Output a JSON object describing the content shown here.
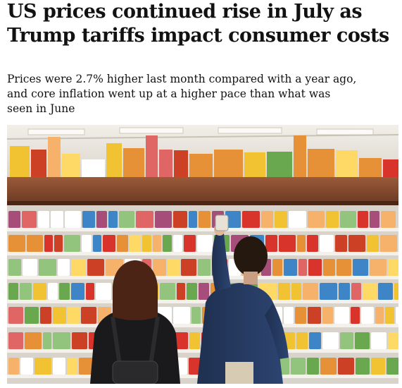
{
  "article": {
    "headline": "US prices continued rise in July as Trump tariffs impact consumer costs",
    "standfirst": "Prices were 2.7% higher last month compared with a year ago, and core inflation went up at a higher pace than what was seen in June"
  },
  "hero_image": {
    "subject": "supermarket-snack-aisle-shoppers"
  }
}
